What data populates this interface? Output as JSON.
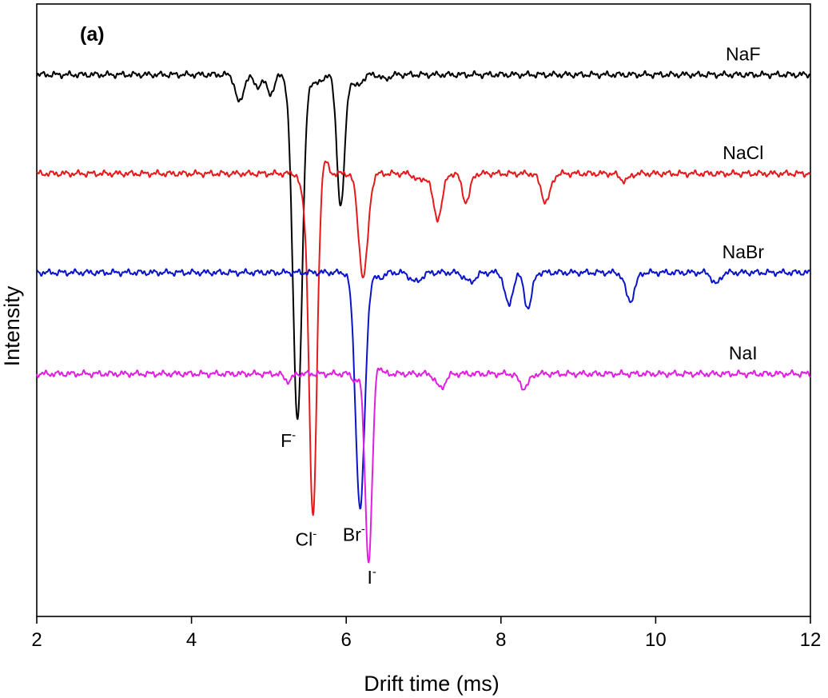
{
  "chart_data": {
    "type": "line",
    "panel_label": "(a)",
    "xlabel": "Drift time (ms)",
    "ylabel": "Intensity",
    "xlim": [
      2,
      12
    ],
    "xticks": [
      2,
      4,
      6,
      8,
      10,
      12
    ],
    "ylim": [
      -0.7,
      0.6
    ],
    "yticks_shown": false,
    "grid": false,
    "legend": "none (direct labels on traces)",
    "series": [
      {
        "name": "NaF",
        "color": "#000000",
        "offset": 0.45,
        "peaks": [
          {
            "x": 4.62,
            "depth": 0.06,
            "width": 0.05
          },
          {
            "x": 4.85,
            "depth": 0.025,
            "width": 0.05
          },
          {
            "x": 5.02,
            "depth": 0.04,
            "width": 0.05
          },
          {
            "x": 5.37,
            "depth": 0.73,
            "width": 0.06
          },
          {
            "x": 5.62,
            "depth": 0.02,
            "width": 0.06
          },
          {
            "x": 5.93,
            "depth": 0.28,
            "width": 0.05
          },
          {
            "x": 6.14,
            "depth": 0.025,
            "width": 0.06
          },
          {
            "x": 6.5,
            "depth": 0.01,
            "width": 0.05
          }
        ]
      },
      {
        "name": "NaCl",
        "color": "#e41a1c",
        "offset": 0.24,
        "peaks": [
          {
            "x": 5.44,
            "depth": 0.04,
            "width": 0.04
          },
          {
            "x": 5.57,
            "depth": 0.73,
            "width": 0.05
          },
          {
            "x": 5.72,
            "depth": -0.03,
            "width": 0.04
          },
          {
            "x": 6.22,
            "depth": 0.22,
            "width": 0.06
          },
          {
            "x": 6.95,
            "depth": 0.015,
            "width": 0.06
          },
          {
            "x": 7.18,
            "depth": 0.095,
            "width": 0.06
          },
          {
            "x": 7.55,
            "depth": 0.06,
            "width": 0.05
          },
          {
            "x": 8.58,
            "depth": 0.06,
            "width": 0.06
          },
          {
            "x": 9.6,
            "depth": 0.015,
            "width": 0.06
          }
        ]
      },
      {
        "name": "NaBr",
        "color": "#0a14c8",
        "offset": 0.03,
        "peaks": [
          {
            "x": 6.18,
            "depth": 0.5,
            "width": 0.06
          },
          {
            "x": 6.42,
            "depth": 0.012,
            "width": 0.06
          },
          {
            "x": 6.9,
            "depth": 0.02,
            "width": 0.07
          },
          {
            "x": 7.6,
            "depth": 0.02,
            "width": 0.07
          },
          {
            "x": 8.1,
            "depth": 0.07,
            "width": 0.05
          },
          {
            "x": 8.35,
            "depth": 0.075,
            "width": 0.05
          },
          {
            "x": 9.67,
            "depth": 0.06,
            "width": 0.06
          },
          {
            "x": 10.78,
            "depth": 0.025,
            "width": 0.05
          }
        ]
      },
      {
        "name": "NaI",
        "color": "#e020e0",
        "offset": -0.185,
        "peaks": [
          {
            "x": 5.25,
            "depth": 0.015,
            "width": 0.05
          },
          {
            "x": 6.12,
            "depth": 0.015,
            "width": 0.04
          },
          {
            "x": 6.29,
            "depth": 0.4,
            "width": 0.045
          },
          {
            "x": 6.4,
            "depth": -0.025,
            "width": 0.04
          },
          {
            "x": 7.22,
            "depth": 0.03,
            "width": 0.06
          },
          {
            "x": 8.3,
            "depth": 0.03,
            "width": 0.06
          }
        ]
      }
    ],
    "annotations": [
      {
        "base": "F",
        "sup": "-",
        "x": 5.25,
        "y": -0.34
      },
      {
        "base": "Cl",
        "sup": "-",
        "x": 5.48,
        "y": -0.55
      },
      {
        "base": "Br",
        "sup": "-",
        "x": 6.1,
        "y": -0.54
      },
      {
        "base": "I",
        "sup": "-",
        "x": 6.33,
        "y": -0.63
      }
    ]
  }
}
